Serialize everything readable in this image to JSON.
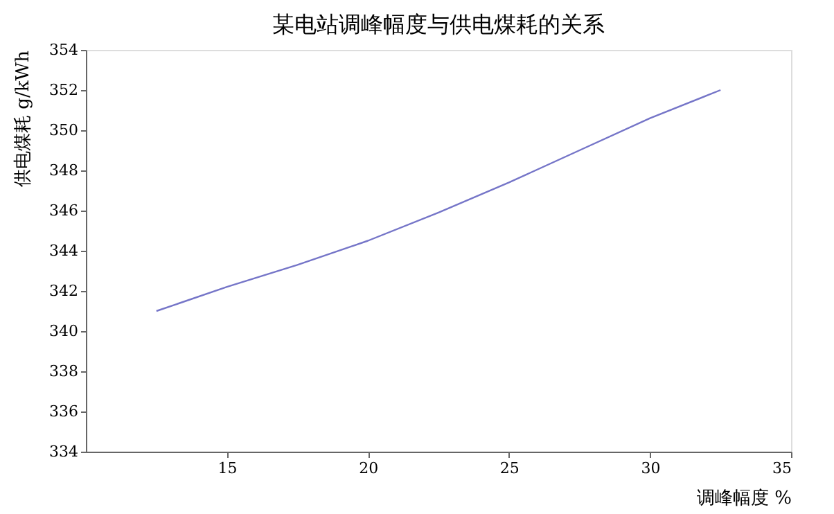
{
  "chart_data": {
    "type": "line",
    "title": "某电站调峰幅度与供电煤耗的关系",
    "xlabel": "调峰幅度  %",
    "ylabel": "供电煤耗    g/kWh",
    "x": [
      12.5,
      15,
      17.5,
      20,
      22.5,
      25,
      27.5,
      30,
      32.5
    ],
    "series": [
      {
        "color": "#7575c8",
        "values": [
          341,
          342.2,
          343.3,
          344.5,
          345.9,
          347.4,
          349,
          350.6,
          352
        ]
      }
    ],
    "xlim": [
      10,
      35
    ],
    "xticks": [
      15,
      20,
      25,
      30,
      35
    ],
    "ylim": [
      334,
      354
    ],
    "yticks": [
      334,
      336,
      338,
      340,
      342,
      344,
      346,
      348,
      350,
      352,
      354
    ],
    "grid": false,
    "marker": "none",
    "line_style": "solid"
  }
}
